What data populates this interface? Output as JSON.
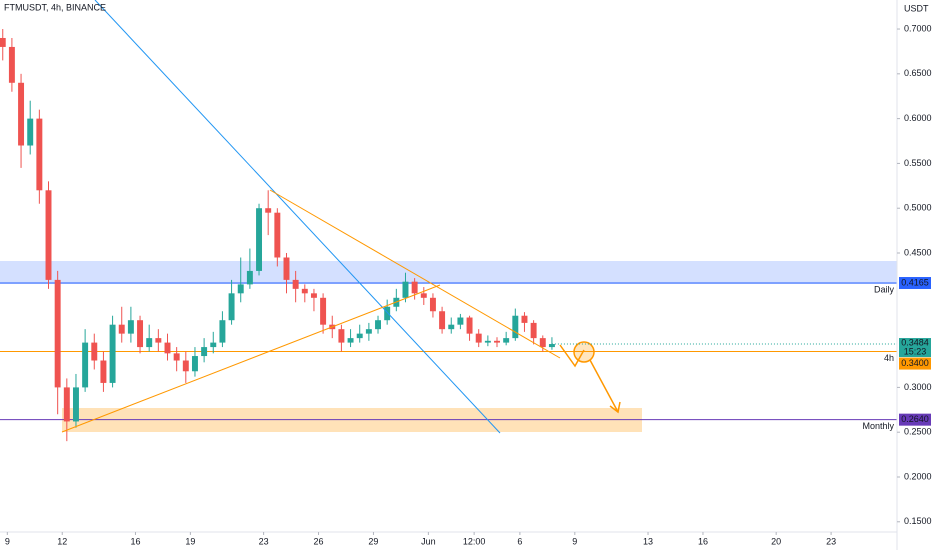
{
  "chart_data": {
    "type": "candlestick",
    "title": "FTMUSDT, 4h, BINANCE",
    "currency": "USDT",
    "x": [
      -3.25,
      -2.75,
      -2.25,
      -1.75,
      -1.25,
      -0.75,
      -0.25,
      0.25,
      0.75,
      1.25,
      1.75,
      2.25,
      2.75,
      3.25,
      3.75,
      4.25,
      4.75,
      5.25,
      5.75,
      6.25,
      6.75,
      7.25,
      7.75,
      8.25,
      8.75,
      9.25,
      9.75,
      10.25,
      10.75,
      11.25,
      11.75,
      12.25,
      12.75,
      13.25,
      13.75,
      14.25,
      14.75,
      15.25,
      15.75,
      16.25,
      16.75,
      17.25,
      17.75,
      18.25,
      18.75,
      19.25,
      19.75,
      20.25,
      20.75,
      21.25,
      21.75,
      22.25,
      22.75,
      23.25,
      23.75,
      24.25,
      24.75,
      25.25,
      25.75,
      26.25,
      26.75
    ],
    "open": [
      0.69,
      0.68,
      0.64,
      0.57,
      0.6,
      0.52,
      0.42,
      0.3,
      0.262,
      0.3,
      0.35,
      0.33,
      0.305,
      0.37,
      0.36,
      0.375,
      0.345,
      0.355,
      0.35,
      0.338,
      0.33,
      0.318,
      0.335,
      0.345,
      0.35,
      0.375,
      0.405,
      0.415,
      0.43,
      0.5,
      0.495,
      0.445,
      0.42,
      0.41,
      0.405,
      0.4,
      0.37,
      0.365,
      0.35,
      0.355,
      0.36,
      0.365,
      0.375,
      0.39,
      0.4,
      0.418,
      0.405,
      0.4,
      0.385,
      0.365,
      0.37,
      0.378,
      0.36,
      0.35,
      0.352,
      0.35,
      0.355,
      0.38,
      0.372,
      0.355,
      0.345
    ],
    "high": [
      0.7,
      0.69,
      0.65,
      0.62,
      0.61,
      0.53,
      0.43,
      0.31,
      0.315,
      0.365,
      0.36,
      0.34,
      0.38,
      0.39,
      0.39,
      0.38,
      0.37,
      0.365,
      0.36,
      0.345,
      0.34,
      0.345,
      0.355,
      0.362,
      0.385,
      0.42,
      0.445,
      0.455,
      0.505,
      0.52,
      0.5,
      0.45,
      0.43,
      0.415,
      0.41,
      0.405,
      0.38,
      0.37,
      0.365,
      0.37,
      0.372,
      0.38,
      0.398,
      0.41,
      0.428,
      0.422,
      0.412,
      0.405,
      0.39,
      0.378,
      0.382,
      0.38,
      0.365,
      0.358,
      0.356,
      0.362,
      0.388,
      0.384,
      0.375,
      0.358,
      0.356
    ],
    "low": [
      0.665,
      0.63,
      0.545,
      0.56,
      0.505,
      0.41,
      0.27,
      0.24,
      0.255,
      0.295,
      0.32,
      0.295,
      0.3,
      0.35,
      0.35,
      0.338,
      0.34,
      0.34,
      0.33,
      0.318,
      0.305,
      0.312,
      0.328,
      0.338,
      0.345,
      0.37,
      0.395,
      0.41,
      0.425,
      0.47,
      0.435,
      0.405,
      0.395,
      0.395,
      0.385,
      0.36,
      0.355,
      0.34,
      0.345,
      0.35,
      0.352,
      0.36,
      0.37,
      0.385,
      0.395,
      0.398,
      0.392,
      0.378,
      0.36,
      0.36,
      0.365,
      0.352,
      0.345,
      0.346,
      0.345,
      0.347,
      0.352,
      0.362,
      0.348,
      0.34,
      0.342
    ],
    "close": [
      0.68,
      0.64,
      0.57,
      0.6,
      0.52,
      0.42,
      0.3,
      0.262,
      0.3,
      0.35,
      0.33,
      0.305,
      0.37,
      0.36,
      0.375,
      0.345,
      0.355,
      0.35,
      0.338,
      0.33,
      0.318,
      0.335,
      0.345,
      0.35,
      0.375,
      0.405,
      0.415,
      0.43,
      0.5,
      0.495,
      0.445,
      0.42,
      0.41,
      0.405,
      0.4,
      0.37,
      0.365,
      0.35,
      0.355,
      0.36,
      0.365,
      0.375,
      0.39,
      0.4,
      0.418,
      0.405,
      0.4,
      0.385,
      0.365,
      0.37,
      0.378,
      0.36,
      0.35,
      0.352,
      0.35,
      0.355,
      0.38,
      0.372,
      0.355,
      0.345,
      0.3484
    ],
    "up_color": "#26a69a",
    "down_color": "#ef5350",
    "xlim": [
      -3.4,
      45.6
    ],
    "xticks": [
      {
        "value": -3,
        "label": "9"
      },
      {
        "value": 0,
        "label": "12"
      },
      {
        "value": 4,
        "label": "16"
      },
      {
        "value": 7,
        "label": "19"
      },
      {
        "value": 11,
        "label": "23"
      },
      {
        "value": 14,
        "label": "26"
      },
      {
        "value": 17,
        "label": "29"
      },
      {
        "value": 20,
        "label": "Jun"
      },
      {
        "value": 22.5,
        "label": "12:00"
      },
      {
        "value": 25,
        "label": "6"
      },
      {
        "value": 28,
        "label": "9"
      },
      {
        "value": 32,
        "label": "13"
      },
      {
        "value": 35,
        "label": "16"
      },
      {
        "value": 39,
        "label": "20"
      },
      {
        "value": 42,
        "label": "23"
      }
    ],
    "ylim": [
      0.1386,
      0.7324
    ],
    "yticks": [
      {
        "value": 0.7,
        "label": "0.7000"
      },
      {
        "value": 0.65,
        "label": "0.6500"
      },
      {
        "value": 0.6,
        "label": "0.6000"
      },
      {
        "value": 0.55,
        "label": "0.5500"
      },
      {
        "value": 0.5,
        "label": "0.5000"
      },
      {
        "value": 0.45,
        "label": "0.4500"
      },
      {
        "value": 0.3,
        "label": "0.3000"
      },
      {
        "value": 0.25,
        "label": "0.2500"
      },
      {
        "value": 0.2,
        "label": "0.2000"
      },
      {
        "value": 0.15,
        "label": "0.1500"
      }
    ],
    "levels": [
      {
        "value": 0.4165,
        "name": "Daily",
        "color": "#2962ff"
      },
      {
        "value": 0.34,
        "label": "0.3400",
        "name": "4h",
        "color": "#ff9800"
      },
      {
        "value": 0.264,
        "label": "0.2640",
        "name": "Monthly",
        "color": "#673ab7"
      }
    ],
    "last_price": {
      "value": 0.3484,
      "countdown": "15:23",
      "color": "#26a69a"
    }
  }
}
